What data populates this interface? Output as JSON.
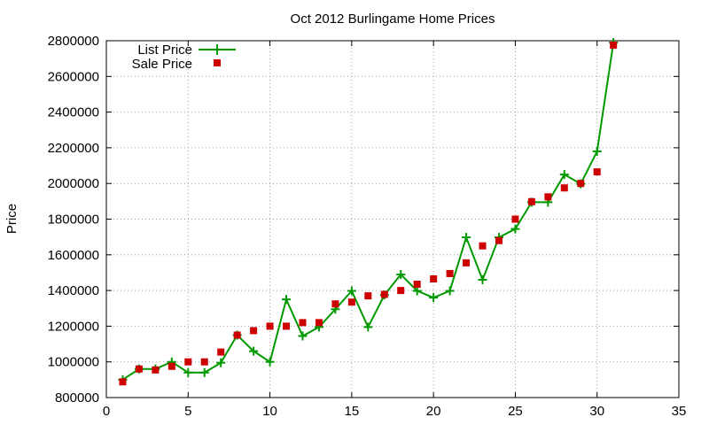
{
  "chart_data": {
    "type": "line",
    "title": "Oct 2012 Burlingame Home Prices",
    "xlabel": "",
    "ylabel": "Price",
    "xlim": [
      0,
      35
    ],
    "ylim": [
      800000,
      2800000
    ],
    "xticks": [
      0,
      5,
      10,
      15,
      20,
      25,
      30,
      35
    ],
    "yticks": [
      800000,
      1000000,
      1200000,
      1400000,
      1600000,
      1800000,
      2000000,
      2200000,
      2400000,
      2600000,
      2800000
    ],
    "grid": true,
    "legend_position": "top-left",
    "series": [
      {
        "name": "List Price",
        "style": "line-points-plus",
        "color": "#009900",
        "x": [
          1,
          2,
          3,
          4,
          5,
          6,
          7,
          8,
          9,
          10,
          11,
          12,
          13,
          14,
          15,
          16,
          17,
          18,
          19,
          20,
          21,
          22,
          23,
          24,
          25,
          26,
          27,
          28,
          29,
          30,
          31
        ],
        "y": [
          900000,
          960000,
          960000,
          1000000,
          940000,
          940000,
          995000,
          1150000,
          1060000,
          1000000,
          1350000,
          1145000,
          1195000,
          1295000,
          1398000,
          1195000,
          1375000,
          1490000,
          1398000,
          1360000,
          1398000,
          1698000,
          1460000,
          1698000,
          1745000,
          1895000,
          1895000,
          2050000,
          1998000,
          2180000,
          2790000
        ]
      },
      {
        "name": "Sale Price",
        "style": "points-square",
        "color": "#cc0000",
        "x": [
          1,
          2,
          3,
          4,
          5,
          6,
          7,
          8,
          9,
          10,
          11,
          12,
          13,
          14,
          15,
          16,
          17,
          18,
          19,
          20,
          21,
          22,
          23,
          24,
          25,
          26,
          27,
          28,
          29,
          30,
          31
        ],
        "y": [
          888000,
          960000,
          955000,
          975000,
          1000000,
          1000000,
          1055000,
          1150000,
          1175000,
          1200000,
          1200000,
          1220000,
          1220000,
          1325000,
          1335000,
          1370000,
          1378000,
          1400000,
          1435000,
          1465000,
          1495000,
          1555000,
          1650000,
          1680000,
          1800000,
          1898000,
          1925000,
          1975000,
          2000000,
          2065000,
          2775000
        ]
      }
    ]
  }
}
